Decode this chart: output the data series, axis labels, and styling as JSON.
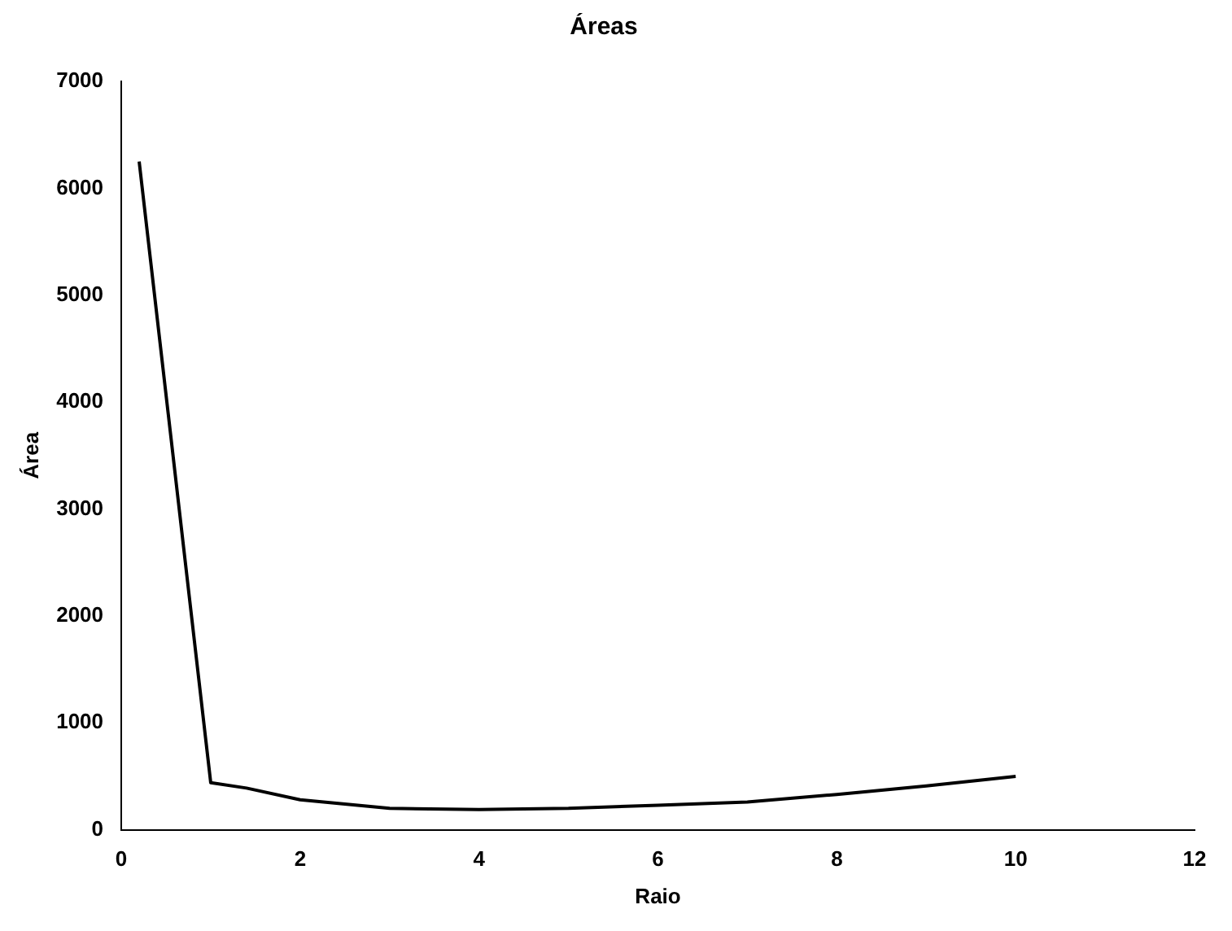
{
  "chart_data": {
    "type": "line",
    "title": "Áreas",
    "xlabel": "Raio",
    "ylabel": "Área",
    "x": [
      0.2,
      1,
      1.4,
      2,
      3,
      4,
      5,
      6,
      7,
      8,
      9,
      10
    ],
    "series": [
      {
        "color": "#000000",
        "values": [
          6250,
          440,
          390,
          280,
          200,
          190,
          200,
          230,
          260,
          330,
          410,
          500
        ]
      }
    ],
    "xlim": [
      0,
      12
    ],
    "xticks": [
      0,
      2,
      4,
      6,
      8,
      10,
      12
    ],
    "ylim": [
      0,
      7000
    ],
    "yticks": [
      0,
      1000,
      2000,
      3000,
      4000,
      5000,
      6000,
      7000
    ],
    "grid": false,
    "legend": false,
    "marker": "none",
    "line_style": "solid"
  }
}
